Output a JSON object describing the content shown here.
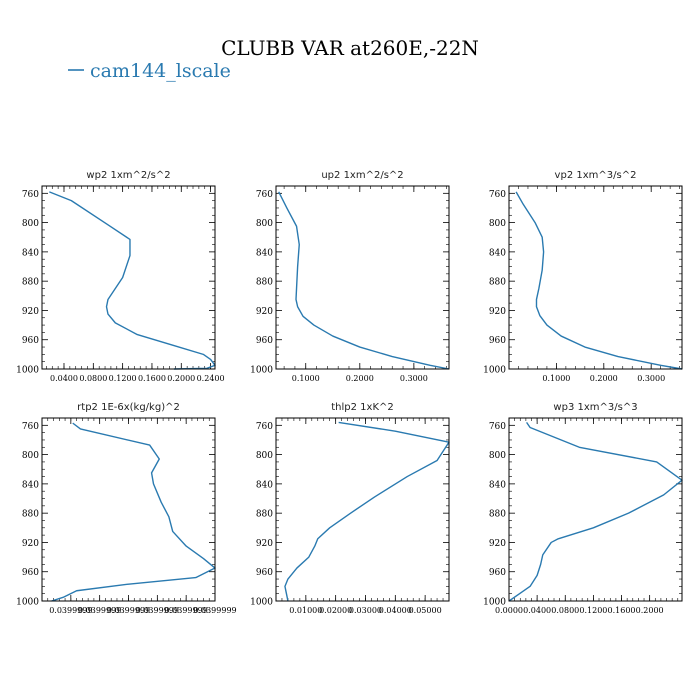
{
  "figure": {
    "title": "CLUBB VAR at260E,-22N",
    "legend_label": "cam144_lscale",
    "line_color": "#2a7ab0"
  },
  "chart_data": [
    {
      "type": "line",
      "title": "wp2   1xm^2/s^2",
      "ylim": [
        1000,
        750
      ],
      "y_ticks": [
        760,
        800,
        840,
        880,
        920,
        960,
        1000
      ],
      "xlim": [
        0.01,
        0.246
      ],
      "x_ticks": [
        0.04,
        0.08,
        0.12,
        0.16,
        0.2,
        0.24
      ],
      "x_tick_labels": [
        "0.0400",
        "0.0800",
        "0.1200",
        "0.1600",
        "0.2000",
        "0.2400"
      ],
      "series": [
        {
          "name": "cam144_lscale",
          "x": [
            0.02,
            0.05,
            0.1,
            0.13,
            0.13,
            0.12,
            0.1,
            0.098,
            0.1,
            0.11,
            0.14,
            0.19,
            0.23,
            0.24,
            0.246,
            0.235,
            0.19
          ],
          "y": [
            758,
            770,
            803,
            823,
            845,
            875,
            905,
            915,
            925,
            937,
            953,
            968,
            980,
            987,
            995,
            999,
            1000
          ]
        }
      ]
    },
    {
      "type": "line",
      "title": "up2   1xm^2/s^2",
      "ylim": [
        1000,
        750
      ],
      "y_ticks": [
        760,
        800,
        840,
        880,
        920,
        960,
        1000
      ],
      "xlim": [
        0.045,
        0.365
      ],
      "x_ticks": [
        0.1,
        0.2,
        0.3
      ],
      "x_tick_labels": [
        "0.1000",
        "0.2000",
        "0.3000"
      ],
      "series": [
        {
          "name": "up2",
          "x": [
            0.05,
            0.065,
            0.083,
            0.088,
            0.085,
            0.083,
            0.082,
            0.085,
            0.095,
            0.115,
            0.15,
            0.2,
            0.26,
            0.33,
            0.365
          ],
          "y": [
            758,
            780,
            805,
            830,
            860,
            890,
            905,
            915,
            928,
            940,
            955,
            970,
            983,
            995,
            1000
          ]
        }
      ]
    },
    {
      "type": "line",
      "title": "vp2   1xm^3/s^2",
      "ylim": [
        1000,
        750
      ],
      "y_ticks": [
        760,
        800,
        840,
        880,
        920,
        960,
        1000
      ],
      "xlim": [
        0.0,
        0.365
      ],
      "x_ticks": [
        0.1,
        0.2,
        0.3
      ],
      "x_tick_labels": [
        "0.1000",
        "0.2000",
        "0.3000"
      ],
      "series": [
        {
          "name": "vp2",
          "x": [
            0.015,
            0.03,
            0.055,
            0.07,
            0.073,
            0.07,
            0.063,
            0.058,
            0.058,
            0.065,
            0.08,
            0.11,
            0.16,
            0.23,
            0.32,
            0.365
          ],
          "y": [
            758,
            775,
            800,
            820,
            840,
            865,
            890,
            905,
            915,
            927,
            940,
            955,
            970,
            983,
            995,
            1000
          ]
        }
      ]
    },
    {
      "type": "line",
      "title": "rtp2   1E-6x(kg/kg)^2",
      "ylim": [
        1000,
        750
      ],
      "y_ticks": [
        760,
        800,
        840,
        880,
        920,
        960,
        1000
      ],
      "xlim": [
        0.039999,
        0.0399999
      ],
      "x_ticks": [
        0.03999915,
        0.0399993,
        0.03999945,
        0.0399996,
        0.03999975,
        0.0399999
      ],
      "x_tick_labels": [
        "0.0399999",
        "0.0399999",
        "0.0399999",
        "0.0399999",
        "0.0399999",
        "0.0399999"
      ],
      "series": [
        {
          "name": "rtp2",
          "x": [
            0.03999916,
            0.0399992,
            0.03999956,
            0.03999961,
            0.03999957,
            0.03999958,
            0.03999962,
            0.03999966,
            0.03999968,
            0.03999975,
            0.03999984,
            0.0399999,
            0.0399998,
            0.03999945,
            0.03999918,
            0.03999911,
            0.03999905
          ],
          "y": [
            757,
            765,
            787,
            806,
            825,
            840,
            865,
            885,
            905,
            925,
            942,
            955,
            968,
            977,
            986,
            995,
            1000
          ]
        }
      ]
    },
    {
      "type": "line",
      "title": "thlp2   1xK^2",
      "ylim": [
        1000,
        750
      ],
      "y_ticks": [
        760,
        800,
        840,
        880,
        920,
        960,
        1000
      ],
      "xlim": [
        0.0,
        0.058
      ],
      "x_ticks": [
        0.01,
        0.02,
        0.03,
        0.04,
        0.05
      ],
      "x_tick_labels": [
        "0.01000",
        "0.02000",
        "0.03000",
        "0.04000",
        "0.05000"
      ],
      "series": [
        {
          "name": "thlp2",
          "x": [
            0.021,
            0.04,
            0.058,
            0.054,
            0.044,
            0.033,
            0.025,
            0.018,
            0.014,
            0.013,
            0.011,
            0.007,
            0.004,
            0.003,
            0.0035,
            0.004
          ],
          "y": [
            756,
            768,
            783,
            808,
            830,
            858,
            880,
            900,
            915,
            925,
            940,
            955,
            970,
            980,
            990,
            1000
          ]
        }
      ]
    },
    {
      "type": "line",
      "title": "wp3   1xm^3/s^3",
      "ylim": [
        1000,
        750
      ],
      "y_ticks": [
        760,
        800,
        840,
        880,
        920,
        960,
        1000
      ],
      "xlim": [
        0.0,
        0.246
      ],
      "x_ticks": [
        0.0,
        0.04,
        0.08,
        0.12,
        0.16,
        0.2
      ],
      "x_tick_labels": [
        "0.0000",
        "0.0400",
        "0.0800",
        "0.1200",
        "0.1600",
        "0.2000"
      ],
      "series": [
        {
          "name": "wp3",
          "x": [
            0.025,
            0.03,
            0.1,
            0.21,
            0.246,
            0.22,
            0.17,
            0.12,
            0.07,
            0.06,
            0.048,
            0.045,
            0.04,
            0.03,
            0.015,
            0.0
          ],
          "y": [
            756,
            763,
            790,
            810,
            835,
            855,
            880,
            900,
            915,
            920,
            937,
            950,
            965,
            980,
            990,
            1000
          ]
        }
      ]
    }
  ]
}
